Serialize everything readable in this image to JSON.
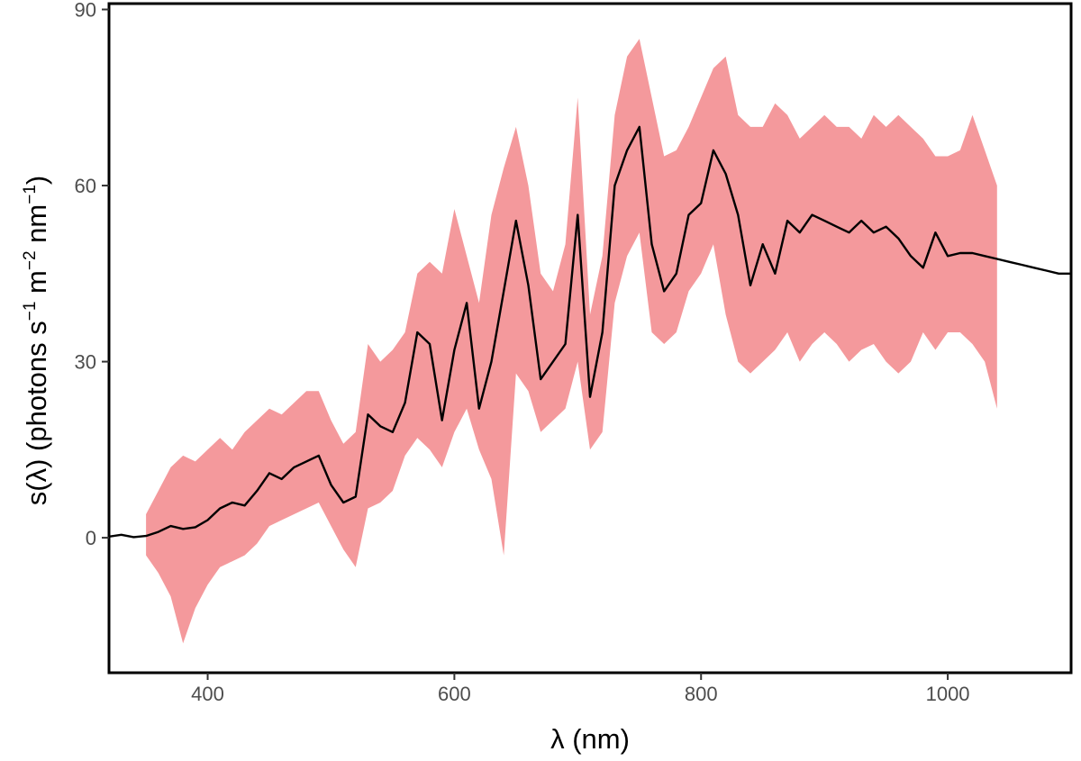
{
  "chart_data": {
    "type": "line",
    "title": "",
    "xlabel": "λ (nm)",
    "ylabel": {
      "prefix": "s(λ) (photons s",
      "exp1": "−1",
      "mid": " m",
      "exp2": "−2",
      "mid2": " nm",
      "exp3": "−1",
      "suffix": ")"
    },
    "xlim": [
      320,
      1100
    ],
    "ylim": [
      -23,
      91
    ],
    "x_ticks": [
      400,
      600,
      800,
      1000
    ],
    "x_tick_labels": [
      "400",
      "600",
      "800",
      "1000"
    ],
    "y_ticks": [
      0,
      30,
      60,
      90
    ],
    "y_tick_labels": [
      "0",
      "30",
      "60",
      "90"
    ],
    "grid": false,
    "legend": "none",
    "series": [
      {
        "kind": "line",
        "color": "#000000",
        "x": [
          320,
          330,
          340,
          350,
          360,
          370,
          380,
          390,
          400,
          410,
          420,
          430,
          440,
          450,
          460,
          470,
          480,
          490,
          500,
          510,
          520,
          530,
          540,
          550,
          560,
          570,
          580,
          590,
          600,
          610,
          620,
          630,
          640,
          650,
          660,
          670,
          680,
          690,
          700,
          710,
          720,
          730,
          740,
          750,
          760,
          770,
          780,
          790,
          800,
          810,
          820,
          830,
          840,
          850,
          860,
          870,
          880,
          890,
          900,
          910,
          920,
          930,
          940,
          950,
          960,
          970,
          980,
          990,
          1000,
          1010,
          1020,
          1030,
          1040,
          1050,
          1060,
          1070,
          1080,
          1090,
          1100
        ],
        "y": [
          0.2,
          0.5,
          0.1,
          0.3,
          1.0,
          2.0,
          1.5,
          1.8,
          3.0,
          5.0,
          6.0,
          5.5,
          8.0,
          11.0,
          10.0,
          12.0,
          13.0,
          14.0,
          9.0,
          6.0,
          7.0,
          21.0,
          19.0,
          18.0,
          23.0,
          35.0,
          33.0,
          20.0,
          32.0,
          40.0,
          22.0,
          30.0,
          42.0,
          54.0,
          43.0,
          27.0,
          30.0,
          33.0,
          55.0,
          24.0,
          35.0,
          60.0,
          66.0,
          70.0,
          50.0,
          42.0,
          45.0,
          55.0,
          57.0,
          66.0,
          62.0,
          55.0,
          43.0,
          50.0,
          45.0,
          54.0,
          52.0,
          55.0,
          54.0,
          53.0,
          52.0,
          54.0,
          52.0,
          53.0,
          51.0,
          48.0,
          46.0,
          52.0,
          48.0,
          48.5,
          48.5,
          48.0,
          47.5,
          47.0,
          46.5,
          46.0,
          45.5,
          45.0,
          45.0
        ]
      },
      {
        "kind": "band",
        "color": "#f4999c",
        "x": [
          350,
          360,
          370,
          380,
          390,
          400,
          410,
          420,
          430,
          440,
          450,
          460,
          470,
          480,
          490,
          500,
          510,
          520,
          530,
          540,
          550,
          560,
          570,
          580,
          590,
          600,
          610,
          620,
          630,
          640,
          650,
          660,
          670,
          680,
          690,
          700,
          710,
          720,
          730,
          740,
          750,
          760,
          770,
          780,
          790,
          800,
          810,
          820,
          830,
          840,
          850,
          860,
          870,
          880,
          890,
          900,
          910,
          920,
          930,
          940,
          950,
          960,
          970,
          980,
          990,
          1000,
          1010,
          1020,
          1030,
          1040
        ],
        "lower": [
          -3,
          -6,
          -10,
          -18,
          -12,
          -8,
          -5,
          -4,
          -3,
          -1,
          2,
          3,
          4,
          5,
          6,
          2,
          -2,
          -5,
          5,
          6,
          8,
          14,
          17,
          15,
          12,
          18,
          22,
          15,
          10,
          -3,
          28,
          25,
          18,
          20,
          22,
          30,
          15,
          18,
          40,
          48,
          52,
          35,
          33,
          35,
          42,
          45,
          50,
          38,
          30,
          28,
          30,
          32,
          35,
          30,
          33,
          35,
          33,
          30,
          32,
          33,
          30,
          28,
          30,
          35,
          32,
          35,
          35,
          33,
          30,
          22
        ],
        "upper": [
          4,
          8,
          12,
          14,
          13,
          15,
          17,
          15,
          18,
          20,
          22,
          21,
          23,
          25,
          25,
          20,
          16,
          18,
          33,
          30,
          32,
          35,
          45,
          47,
          45,
          56,
          48,
          40,
          55,
          63,
          70,
          60,
          45,
          42,
          50,
          75,
          38,
          48,
          72,
          82,
          85,
          75,
          65,
          66,
          70,
          75,
          80,
          82,
          72,
          70,
          70,
          74,
          72,
          68,
          70,
          72,
          70,
          70,
          68,
          72,
          70,
          72,
          70,
          68,
          65,
          65,
          66,
          72,
          66,
          60
        ]
      }
    ]
  }
}
